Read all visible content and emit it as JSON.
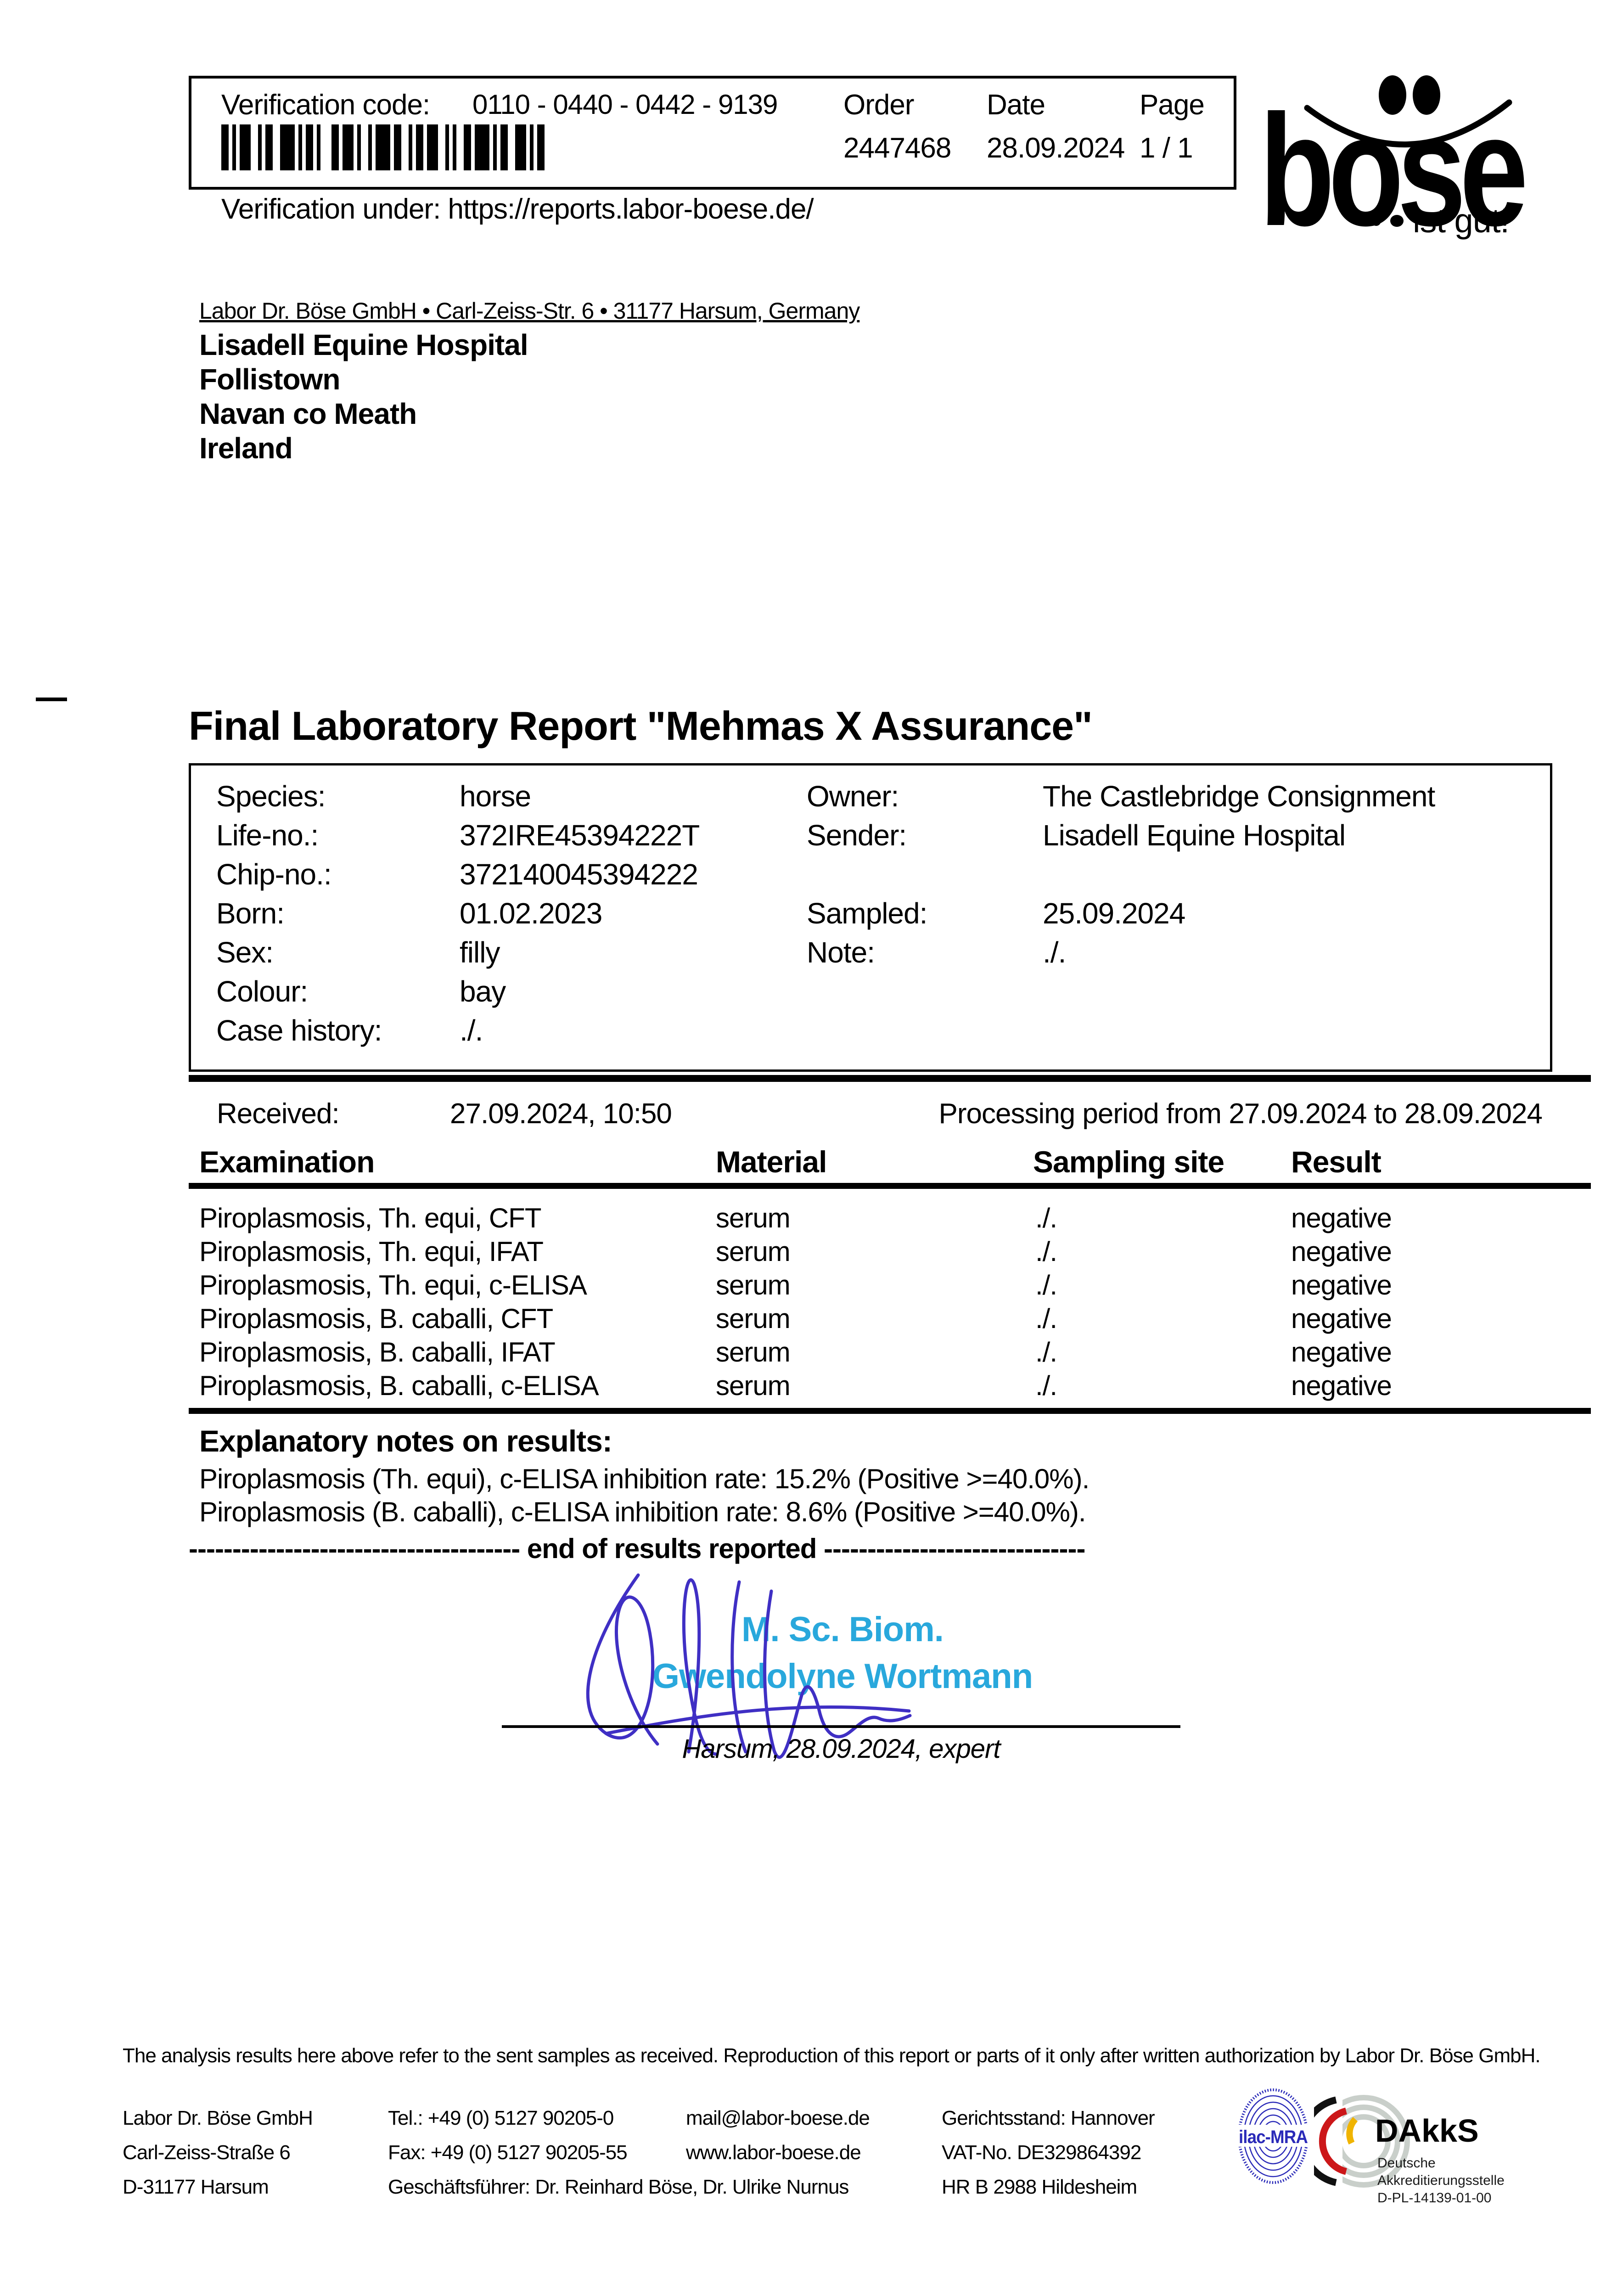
{
  "header": {
    "verification_label": "Verification code:",
    "verification_code": "0110 - 0440 - 0442 - 9139",
    "order_label": "Order",
    "order_value": "2447468",
    "date_label": "Date",
    "date_value": "28.09.2024",
    "page_label": "Page",
    "page_value": "1 / 1",
    "verification_under": "Verification under: https://reports.labor-boese.de/",
    "barcode": [
      2,
      1,
      1,
      1,
      3,
      2,
      1,
      1,
      2,
      2,
      4,
      1,
      1,
      1,
      2,
      1,
      1,
      3,
      2,
      1,
      3,
      1,
      1,
      2,
      1,
      1,
      4,
      1,
      2,
      2,
      1,
      1,
      2,
      1,
      3,
      2,
      1,
      1,
      1,
      2,
      2,
      1,
      4,
      1,
      1,
      1,
      2,
      2,
      3,
      1,
      1,
      1,
      2
    ]
  },
  "logo": {
    "word": "böse",
    "word_visual": "bose",
    "tagline": "ist gut!"
  },
  "sender_line": "Labor Dr. Böse GmbH • Carl-Zeiss-Str. 6 • 31177 Harsum, Germany",
  "recipient": {
    "lines": [
      "Lisadell Equine Hospital",
      "Follistown",
      "Navan co Meath",
      "Ireland"
    ]
  },
  "title": "Final Laboratory Report \"Mehmas X Assurance\"",
  "info": {
    "left": [
      {
        "label": "Species:",
        "value": "horse"
      },
      {
        "label": "Life-no.:",
        "value": "372IRE45394222T"
      },
      {
        "label": "Chip-no.:",
        "value": "372140045394222"
      },
      {
        "label": "Born:",
        "value": "01.02.2023"
      },
      {
        "label": "Sex:",
        "value": "filly"
      },
      {
        "label": "Colour:",
        "value": "bay"
      },
      {
        "label": "Case history:",
        "value": "./."
      }
    ],
    "right": [
      {
        "label": "Owner:",
        "value": "The Castlebridge Consignment"
      },
      {
        "label": "Sender:",
        "value": "Lisadell Equine Hospital"
      },
      {
        "label": "Sampled:",
        "value": "25.09.2024"
      },
      {
        "label": "Note:",
        "value": "./."
      }
    ]
  },
  "received": {
    "label": "Received:",
    "value": "27.09.2024, 10:50",
    "processing": "Processing period from 27.09.2024 to 28.09.2024"
  },
  "results_table": {
    "headers": [
      "Examination",
      "Material",
      "Sampling site",
      "Result"
    ],
    "rows": [
      {
        "exam": "Piroplasmosis, Th. equi, CFT",
        "material": "serum",
        "site": "./.",
        "result": "negative"
      },
      {
        "exam": "Piroplasmosis, Th. equi, IFAT",
        "material": "serum",
        "site": "./.",
        "result": "negative"
      },
      {
        "exam": "Piroplasmosis, Th. equi, c-ELISA",
        "material": "serum",
        "site": "./.",
        "result": "negative"
      },
      {
        "exam": "Piroplasmosis, B. caballi, CFT",
        "material": "serum",
        "site": "./.",
        "result": "negative"
      },
      {
        "exam": "Piroplasmosis, B. caballi, IFAT",
        "material": "serum",
        "site": "./.",
        "result": "negative"
      },
      {
        "exam": "Piroplasmosis, B. caballi, c-ELISA",
        "material": "serum",
        "site": "./.",
        "result": "negative"
      }
    ]
  },
  "notes": {
    "heading": "Explanatory notes on results:",
    "lines": [
      "Piroplasmosis (Th. equi), c-ELISA inhibition rate: 15.2% (Positive >=40.0%).",
      "Piroplasmosis (B. caballi), c-ELISA inhibition rate: 8.6% (Positive >=40.0%)."
    ],
    "end_line": "-------------------------------------- end of results reported ------------------------------"
  },
  "signature": {
    "degree": "M. Sc. Biom.",
    "name": "Gwendolyne Wortmann",
    "place_line": "Harsum, 28.09.2024, expert",
    "stamp_color": "#29a8dc",
    "ink_color": "#3f2fc4"
  },
  "disclaimer": "The analysis results here above refer to the sent samples as received. Reproduction of this report or parts of it only after written authorization by Labor Dr. Böse GmbH.",
  "footer": {
    "col1": [
      "Labor Dr. Böse GmbH",
      "Carl-Zeiss-Straße 6",
      "D-31177 Harsum"
    ],
    "col2": [
      "Tel.: +49 (0) 5127 90205-0",
      "Fax: +49 (0) 5127 90205-55",
      "Geschäftsführer: Dr. Reinhard Böse, Dr. Ulrike Nurnus"
    ],
    "col3": [
      "mail@labor-boese.de",
      "www.labor-boese.de"
    ],
    "col4": [
      "Gerichtsstand: Hannover",
      "VAT-No. DE329864392",
      "HR B 2988 Hildesheim"
    ]
  },
  "accreditation": {
    "ilac": "ilac-MRA",
    "dakks": "DAkkS",
    "sub1": "Deutsche",
    "sub2": "Akkreditierungsstelle",
    "code": "D-PL-14139-01-00"
  }
}
